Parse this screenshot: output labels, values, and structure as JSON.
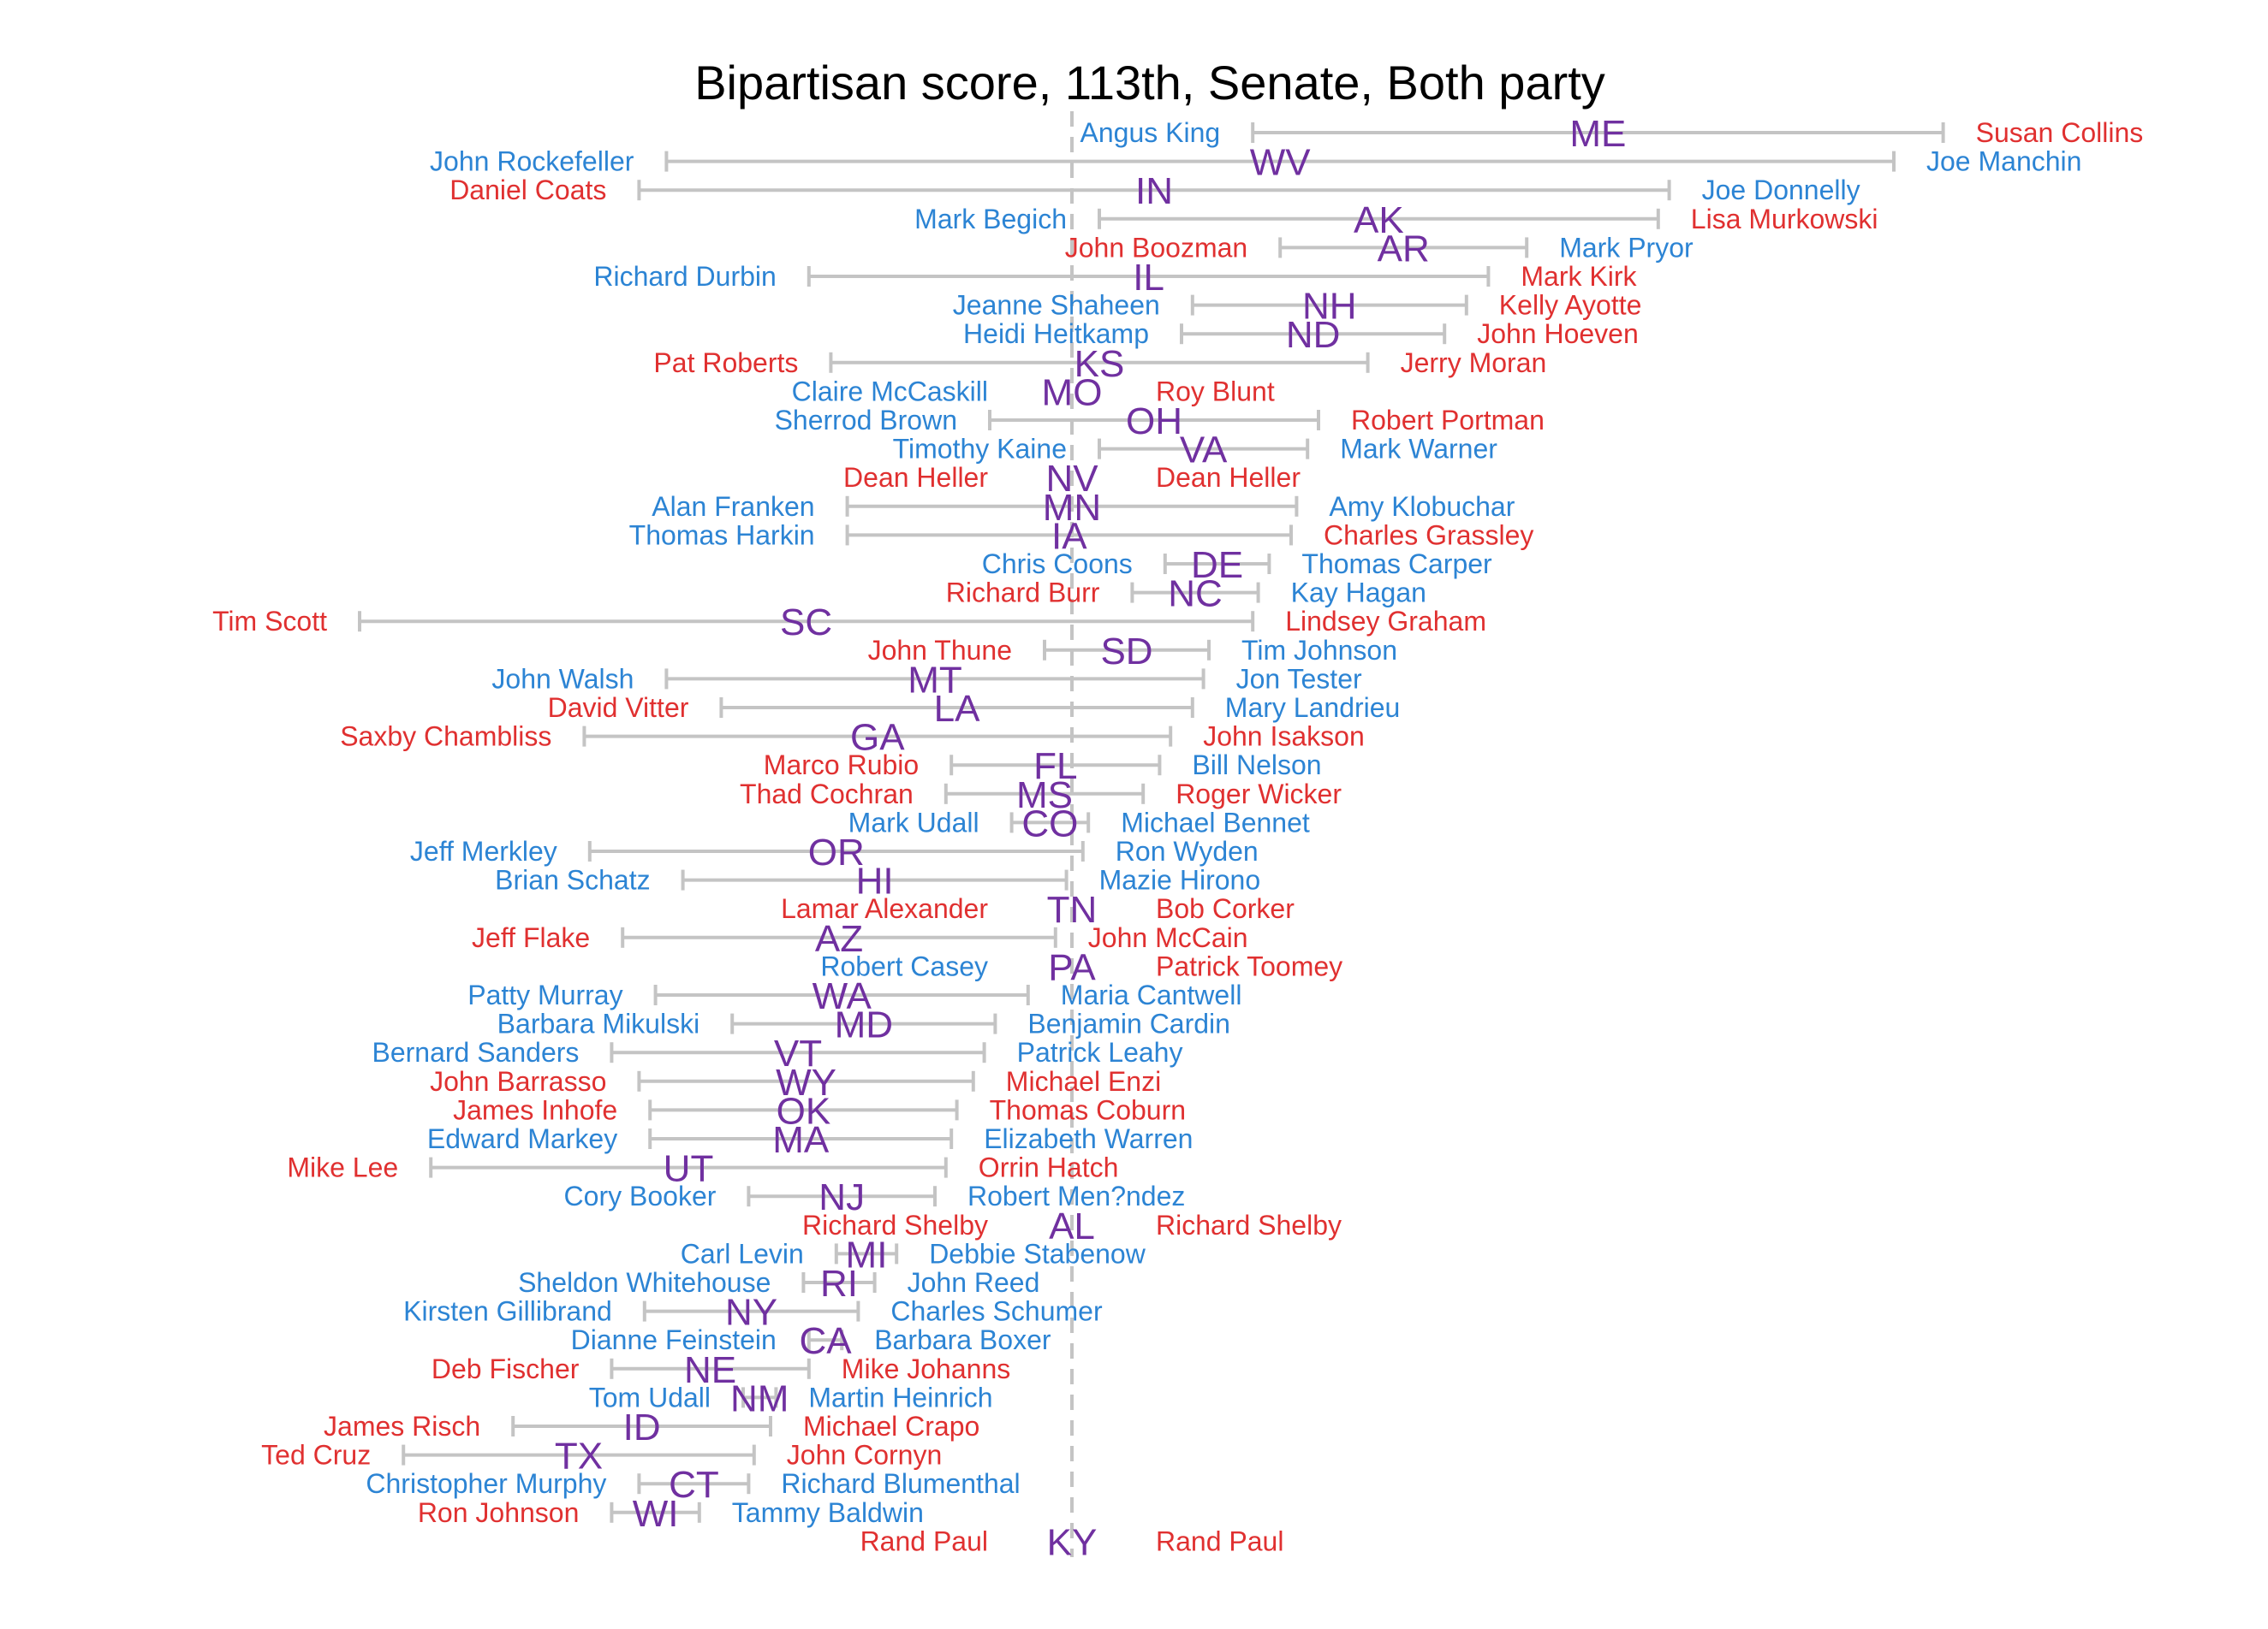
{
  "chart_data": {
    "type": "dumbbell",
    "title": "Bipartisan score, 113th, Senate, Both party",
    "xlabel": "",
    "ylabel": "",
    "reference_line_x": 0,
    "xlim": [
      -1.83,
      2.22
    ],
    "colors": {
      "democrat": "#2c84d4",
      "republican": "#e03030",
      "state": "#7030a0",
      "bar": "#c4c4c4",
      "reference": "#c4c4c4"
    },
    "rows": [
      {
        "state": "ME",
        "left": {
          "name": "Angus King",
          "party": "D",
          "value": 0.33
        },
        "right": {
          "name": "Susan Collins",
          "party": "R",
          "value": 1.59
        }
      },
      {
        "state": "WV",
        "left": {
          "name": "John Rockefeller",
          "party": "D",
          "value": -0.74
        },
        "right": {
          "name": "Joe Manchin",
          "party": "D",
          "value": 1.5
        }
      },
      {
        "state": "IN",
        "left": {
          "name": "Daniel Coats",
          "party": "R",
          "value": -0.79
        },
        "right": {
          "name": "Joe Donnelly",
          "party": "D",
          "value": 1.09
        }
      },
      {
        "state": "AK",
        "left": {
          "name": "Mark Begich",
          "party": "D",
          "value": 0.05
        },
        "right": {
          "name": "Lisa Murkowski",
          "party": "R",
          "value": 1.07
        }
      },
      {
        "state": "AR",
        "left": {
          "name": "John Boozman",
          "party": "R",
          "value": 0.38
        },
        "right": {
          "name": "Mark Pryor",
          "party": "D",
          "value": 0.83
        }
      },
      {
        "state": "IL",
        "left": {
          "name": "Richard Durbin",
          "party": "D",
          "value": -0.48
        },
        "right": {
          "name": "Mark Kirk",
          "party": "R",
          "value": 0.76
        }
      },
      {
        "state": "NH",
        "left": {
          "name": "Jeanne Shaheen",
          "party": "D",
          "value": 0.22
        },
        "right": {
          "name": "Kelly Ayotte",
          "party": "R",
          "value": 0.72
        }
      },
      {
        "state": "ND",
        "left": {
          "name": "Heidi Heitkamp",
          "party": "D",
          "value": 0.2
        },
        "right": {
          "name": "John Hoeven",
          "party": "R",
          "value": 0.68
        }
      },
      {
        "state": "KS",
        "left": {
          "name": "Pat Roberts",
          "party": "R",
          "value": -0.44
        },
        "right": {
          "name": "Jerry Moran",
          "party": "R",
          "value": 0.54
        }
      },
      {
        "state": "MO",
        "left": {
          "name": "Claire McCaskill",
          "party": "D",
          "value": 0.0
        },
        "right": {
          "name": "Roy Blunt",
          "party": "R",
          "value": 0.0
        }
      },
      {
        "state": "OH",
        "left": {
          "name": "Sherrod Brown",
          "party": "D",
          "value": -0.15
        },
        "right": {
          "name": "Robert Portman",
          "party": "R",
          "value": 0.45
        }
      },
      {
        "state": "VA",
        "left": {
          "name": "Timothy Kaine",
          "party": "D",
          "value": 0.05
        },
        "right": {
          "name": "Mark Warner",
          "party": "D",
          "value": 0.43
        }
      },
      {
        "state": "NV",
        "left": {
          "name": "Dean Heller",
          "party": "R",
          "value": 0.0
        },
        "right": {
          "name": "Dean Heller",
          "party": "R",
          "value": 0.0
        }
      },
      {
        "state": "MN",
        "left": {
          "name": "Alan Franken",
          "party": "D",
          "value": -0.41
        },
        "right": {
          "name": "Amy Klobuchar",
          "party": "D",
          "value": 0.41
        }
      },
      {
        "state": "IA",
        "left": {
          "name": "Thomas Harkin",
          "party": "D",
          "value": -0.41
        },
        "right": {
          "name": "Charles Grassley",
          "party": "R",
          "value": 0.4
        }
      },
      {
        "state": "DE",
        "left": {
          "name": "Chris Coons",
          "party": "D",
          "value": 0.17
        },
        "right": {
          "name": "Thomas Carper",
          "party": "D",
          "value": 0.36
        }
      },
      {
        "state": "NC",
        "left": {
          "name": "Richard Burr",
          "party": "R",
          "value": 0.11
        },
        "right": {
          "name": "Kay Hagan",
          "party": "D",
          "value": 0.34
        }
      },
      {
        "state": "SC",
        "left": {
          "name": "Tim Scott",
          "party": "R",
          "value": -1.3
        },
        "right": {
          "name": "Lindsey Graham",
          "party": "R",
          "value": 0.33
        }
      },
      {
        "state": "SD",
        "left": {
          "name": "John Thune",
          "party": "R",
          "value": -0.05
        },
        "right": {
          "name": "Tim Johnson",
          "party": "D",
          "value": 0.25
        }
      },
      {
        "state": "MT",
        "left": {
          "name": "John Walsh",
          "party": "D",
          "value": -0.74
        },
        "right": {
          "name": "Jon Tester",
          "party": "D",
          "value": 0.24
        }
      },
      {
        "state": "LA",
        "left": {
          "name": "David Vitter",
          "party": "R",
          "value": -0.64
        },
        "right": {
          "name": "Mary Landrieu",
          "party": "D",
          "value": 0.22
        }
      },
      {
        "state": "GA",
        "left": {
          "name": "Saxby Chambliss",
          "party": "R",
          "value": -0.89
        },
        "right": {
          "name": "John Isakson",
          "party": "R",
          "value": 0.18
        }
      },
      {
        "state": "FL",
        "left": {
          "name": "Marco Rubio",
          "party": "R",
          "value": -0.22
        },
        "right": {
          "name": "Bill Nelson",
          "party": "D",
          "value": 0.16
        }
      },
      {
        "state": "MS",
        "left": {
          "name": "Thad Cochran",
          "party": "R",
          "value": -0.23
        },
        "right": {
          "name": "Roger Wicker",
          "party": "R",
          "value": 0.13
        }
      },
      {
        "state": "CO",
        "left": {
          "name": "Mark Udall",
          "party": "D",
          "value": -0.11
        },
        "right": {
          "name": "Michael Bennet",
          "party": "D",
          "value": 0.03
        }
      },
      {
        "state": "OR",
        "left": {
          "name": "Jeff Merkley",
          "party": "D",
          "value": -0.88
        },
        "right": {
          "name": "Ron Wyden",
          "party": "D",
          "value": 0.02
        }
      },
      {
        "state": "HI",
        "left": {
          "name": "Brian Schatz",
          "party": "D",
          "value": -0.71
        },
        "right": {
          "name": "Mazie Hirono",
          "party": "D",
          "value": -0.01
        }
      },
      {
        "state": "TN",
        "left": {
          "name": "Lamar Alexander",
          "party": "R",
          "value": 0.0
        },
        "right": {
          "name": "Bob Corker",
          "party": "R",
          "value": 0.0
        }
      },
      {
        "state": "AZ",
        "left": {
          "name": "Jeff Flake",
          "party": "R",
          "value": -0.82
        },
        "right": {
          "name": "John McCain",
          "party": "R",
          "value": -0.03
        }
      },
      {
        "state": "PA",
        "left": {
          "name": "Robert Casey",
          "party": "D",
          "value": 0.0
        },
        "right": {
          "name": "Patrick Toomey",
          "party": "R",
          "value": 0.0
        }
      },
      {
        "state": "WA",
        "left": {
          "name": "Patty Murray",
          "party": "D",
          "value": -0.76
        },
        "right": {
          "name": "Maria Cantwell",
          "party": "D",
          "value": -0.08
        }
      },
      {
        "state": "MD",
        "left": {
          "name": "Barbara Mikulski",
          "party": "D",
          "value": -0.62
        },
        "right": {
          "name": "Benjamin Cardin",
          "party": "D",
          "value": -0.14
        }
      },
      {
        "state": "VT",
        "left": {
          "name": "Bernard Sanders",
          "party": "D",
          "value": -0.84
        },
        "right": {
          "name": "Patrick Leahy",
          "party": "D",
          "value": -0.16
        }
      },
      {
        "state": "WY",
        "left": {
          "name": "John Barrasso",
          "party": "R",
          "value": -0.79
        },
        "right": {
          "name": "Michael Enzi",
          "party": "R",
          "value": -0.18
        }
      },
      {
        "state": "OK",
        "left": {
          "name": "James Inhofe",
          "party": "R",
          "value": -0.77
        },
        "right": {
          "name": "Thomas Coburn",
          "party": "R",
          "value": -0.21
        }
      },
      {
        "state": "MA",
        "left": {
          "name": "Edward Markey",
          "party": "D",
          "value": -0.77
        },
        "right": {
          "name": "Elizabeth Warren",
          "party": "D",
          "value": -0.22
        }
      },
      {
        "state": "UT",
        "left": {
          "name": "Mike Lee",
          "party": "R",
          "value": -1.17
        },
        "right": {
          "name": "Orrin Hatch",
          "party": "R",
          "value": -0.23
        }
      },
      {
        "state": "NJ",
        "left": {
          "name": "Cory Booker",
          "party": "D",
          "value": -0.59
        },
        "right": {
          "name": "Robert Men?ndez",
          "party": "D",
          "value": -0.25
        }
      },
      {
        "state": "AL",
        "left": {
          "name": "Richard Shelby",
          "party": "R",
          "value": 0.0
        },
        "right": {
          "name": "Richard Shelby",
          "party": "R",
          "value": 0.0
        }
      },
      {
        "state": "MI",
        "left": {
          "name": "Carl Levin",
          "party": "D",
          "value": -0.43
        },
        "right": {
          "name": "Debbie Stabenow",
          "party": "D",
          "value": -0.32
        }
      },
      {
        "state": "RI",
        "left": {
          "name": "Sheldon Whitehouse",
          "party": "D",
          "value": -0.49
        },
        "right": {
          "name": "John Reed",
          "party": "D",
          "value": -0.36
        }
      },
      {
        "state": "NY",
        "left": {
          "name": "Kirsten Gillibrand",
          "party": "D",
          "value": -0.78
        },
        "right": {
          "name": "Charles Schumer",
          "party": "D",
          "value": -0.39
        }
      },
      {
        "state": "CA",
        "left": {
          "name": "Dianne Feinstein",
          "party": "D",
          "value": -0.48
        },
        "right": {
          "name": "Barbara Boxer",
          "party": "D",
          "value": -0.42
        }
      },
      {
        "state": "NE",
        "left": {
          "name": "Deb Fischer",
          "party": "R",
          "value": -0.84
        },
        "right": {
          "name": "Mike Johanns",
          "party": "R",
          "value": -0.48
        }
      },
      {
        "state": "NM",
        "left": {
          "name": "Tom Udall",
          "party": "D",
          "value": -0.6
        },
        "right": {
          "name": "Martin Heinrich",
          "party": "D",
          "value": -0.54
        }
      },
      {
        "state": "ID",
        "left": {
          "name": "James Risch",
          "party": "R",
          "value": -1.02
        },
        "right": {
          "name": "Michael Crapo",
          "party": "R",
          "value": -0.55
        }
      },
      {
        "state": "TX",
        "left": {
          "name": "Ted Cruz",
          "party": "R",
          "value": -1.22
        },
        "right": {
          "name": "John Cornyn",
          "party": "R",
          "value": -0.58
        }
      },
      {
        "state": "CT",
        "left": {
          "name": "Christopher Murphy",
          "party": "D",
          "value": -0.79
        },
        "right": {
          "name": "Richard Blumenthal",
          "party": "D",
          "value": -0.59
        }
      },
      {
        "state": "WI",
        "left": {
          "name": "Ron Johnson",
          "party": "R",
          "value": -0.84
        },
        "right": {
          "name": "Tammy Baldwin",
          "party": "D",
          "value": -0.68
        }
      },
      {
        "state": "KY",
        "left": {
          "name": "Rand Paul",
          "party": "R",
          "value": 0.0
        },
        "right": {
          "name": "Rand Paul",
          "party": "R",
          "value": 0.0
        }
      }
    ]
  }
}
